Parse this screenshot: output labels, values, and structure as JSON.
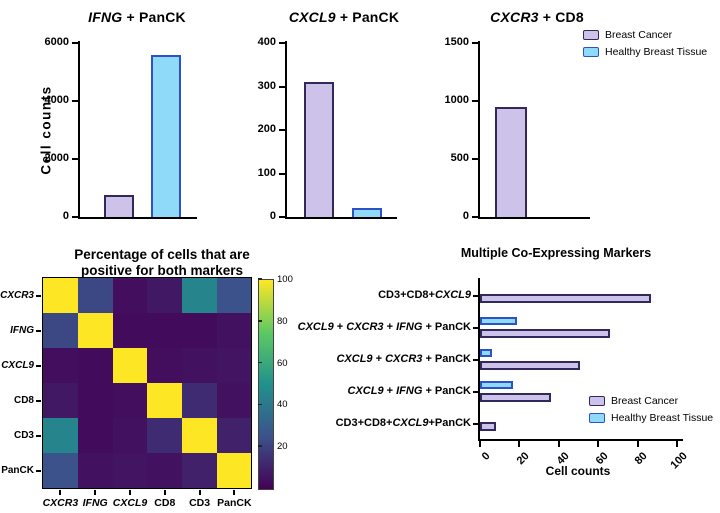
{
  "palette": {
    "breast_cancer_fill": "#CDC2E9",
    "breast_cancer_stroke": "#32295A",
    "healthy_fill": "#8EDAF8",
    "healthy_stroke": "#2C52C9",
    "axis_color": "#000000",
    "viridis_stops": [
      "#440154",
      "#3B528B",
      "#21918C",
      "#5EC962",
      "#FDE725"
    ]
  },
  "legend_top": {
    "items": [
      {
        "label": "Breast Cancer",
        "series": "breast_cancer"
      },
      {
        "label": "Healthy Breast Tissue",
        "series": "healthy"
      }
    ]
  },
  "legend_hbar": {
    "items": [
      {
        "label": "Breast Cancer",
        "series": "breast_cancer"
      },
      {
        "label": "Healthy Breast Tissue",
        "series": "healthy"
      }
    ]
  },
  "chart_data": [
    {
      "id": "ifng-panck",
      "type": "bar",
      "title_segments": [
        [
          "IFNG",
          true
        ],
        [
          " + PanCK",
          false
        ]
      ],
      "ylabel": "Cell counts",
      "ylim": [
        0,
        6000
      ],
      "yticks": [
        0,
        2000,
        4000,
        6000
      ],
      "series": [
        {
          "name": "Breast Cancer",
          "value": 750
        },
        {
          "name": "Healthy Breast Tissue",
          "value": 5600
        }
      ]
    },
    {
      "id": "cxcl9-panck",
      "type": "bar",
      "title_segments": [
        [
          "CXCL9",
          true
        ],
        [
          " + PanCK",
          false
        ]
      ],
      "ylim": [
        0,
        400
      ],
      "yticks": [
        0,
        100,
        200,
        300,
        400
      ],
      "series": [
        {
          "name": "Breast Cancer",
          "value": 310
        },
        {
          "name": "Healthy Breast Tissue",
          "value": 20
        }
      ]
    },
    {
      "id": "cxcr3-cd8",
      "type": "bar",
      "title_segments": [
        [
          "CXCR3",
          true
        ],
        [
          " + CD8",
          false
        ]
      ],
      "ylim": [
        0,
        1500
      ],
      "yticks": [
        0,
        500,
        1000,
        1500
      ],
      "series": [
        {
          "name": "Breast Cancer",
          "value": 950
        },
        {
          "name": "Healthy Breast Tissue",
          "value": 0
        }
      ]
    },
    {
      "id": "co-expression-heatmap",
      "type": "heatmap",
      "title_lines": [
        "Percentage of cells that are",
        "positive for both markers"
      ],
      "labels": [
        {
          "text": "CXCR3",
          "italic": true
        },
        {
          "text": "IFNG",
          "italic": true
        },
        {
          "text": "CXCL9",
          "italic": true
        },
        {
          "text": "CD8",
          "italic": false
        },
        {
          "text": "CD3",
          "italic": false
        },
        {
          "text": "PanCK",
          "italic": false
        }
      ],
      "values": [
        [
          100,
          22,
          4,
          7,
          45,
          25
        ],
        [
          22,
          100,
          3,
          3,
          3,
          5
        ],
        [
          4,
          3,
          100,
          4,
          5,
          6
        ],
        [
          7,
          3,
          4,
          100,
          13,
          5
        ],
        [
          45,
          3,
          5,
          13,
          100,
          10
        ],
        [
          25,
          5,
          6,
          5,
          10,
          100
        ]
      ],
      "colorbar": {
        "min": 0,
        "max": 100,
        "ticks": [
          20,
          40,
          60,
          80,
          100
        ]
      }
    },
    {
      "id": "multi-coexpressing",
      "type": "hbar",
      "title": "Multiple Co-Expressing Markers",
      "xlabel": "Cell counts",
      "xlim": [
        0,
        100
      ],
      "xticks": [
        0,
        20,
        40,
        60,
        80,
        100
      ],
      "categories": [
        {
          "segments": [
            [
              "CD3+CD8+",
              false
            ],
            [
              "CXCL9",
              true
            ]
          ]
        },
        {
          "segments": [
            [
              "CXCL9",
              true
            ],
            [
              " + ",
              false
            ],
            [
              "CXCR3",
              true
            ],
            [
              " + ",
              false
            ],
            [
              "IFNG",
              true
            ],
            [
              " + PanCK",
              false
            ]
          ]
        },
        {
          "segments": [
            [
              "CXCL9",
              true
            ],
            [
              " + ",
              false
            ],
            [
              "CXCR3",
              true
            ],
            [
              " + PanCK",
              false
            ]
          ]
        },
        {
          "segments": [
            [
              "CXCL9",
              true
            ],
            [
              " + ",
              false
            ],
            [
              "IFNG",
              true
            ],
            [
              " + PanCK",
              false
            ]
          ]
        },
        {
          "segments": [
            [
              "CD3+CD8+",
              false
            ],
            [
              "CXCL9",
              true
            ],
            [
              "+PanCK",
              false
            ]
          ]
        }
      ],
      "series": [
        {
          "name": "Breast Cancer",
          "values": [
            87,
            66,
            51,
            36,
            8
          ]
        },
        {
          "name": "Healthy Breast Tissue",
          "values": [
            0,
            19,
            6,
            17,
            0
          ]
        }
      ]
    }
  ]
}
